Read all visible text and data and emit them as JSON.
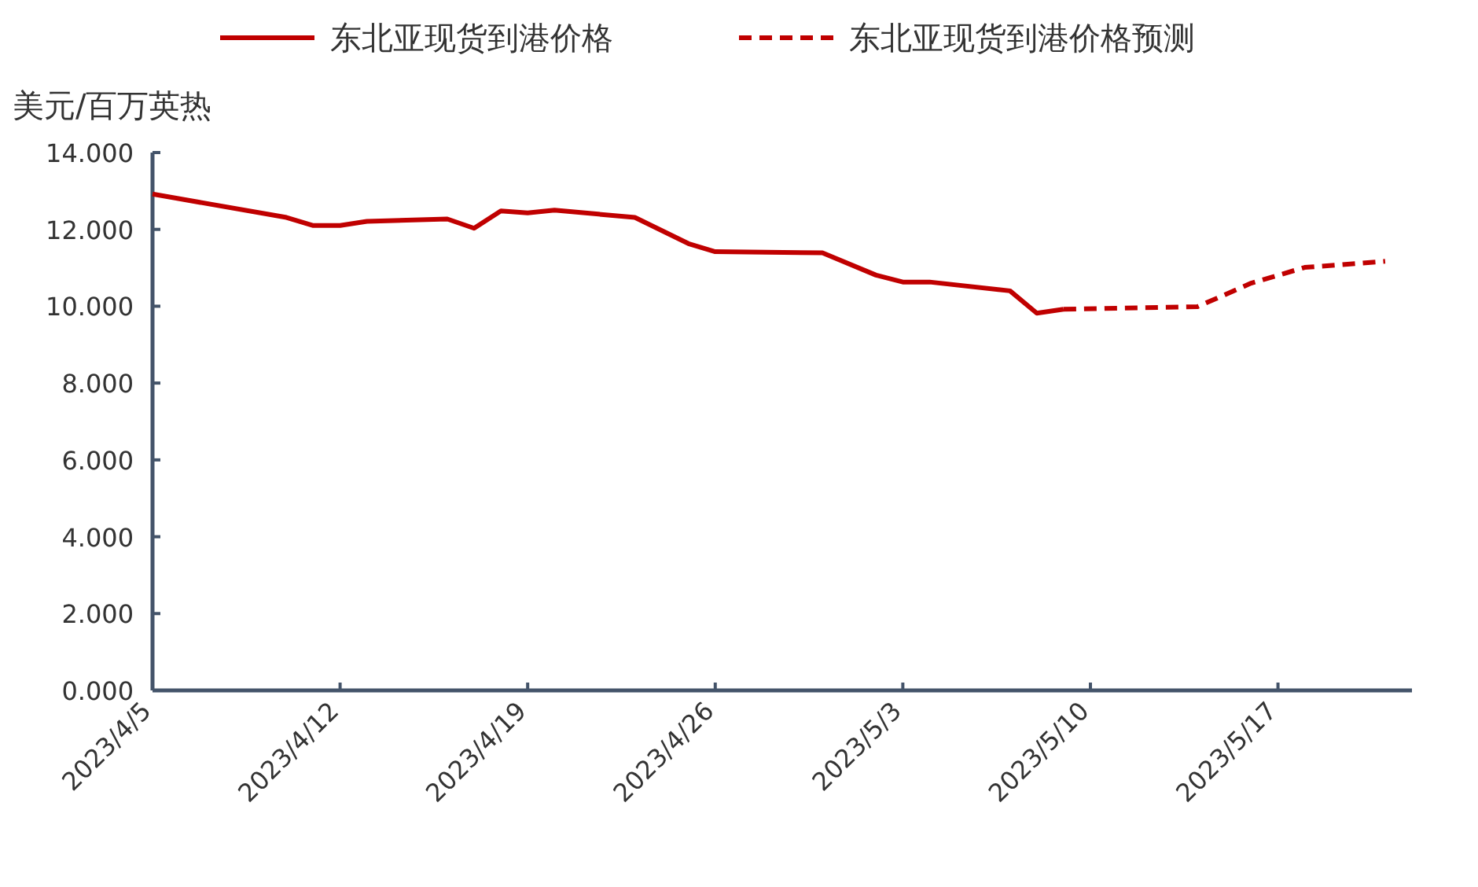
{
  "chart_data": {
    "type": "line",
    "ylabel": "美元/百万英热",
    "legend": "top",
    "xlim": [
      "2023-04-05",
      "2023-05-22"
    ],
    "xticks": [
      {
        "value": "2023-04-05",
        "label": "2023/4/5"
      },
      {
        "value": "2023-04-12",
        "label": "2023/4/12"
      },
      {
        "value": "2023-04-19",
        "label": "2023/4/19"
      },
      {
        "value": "2023-04-26",
        "label": "2023/4/26"
      },
      {
        "value": "2023-05-03",
        "label": "2023/5/3"
      },
      {
        "value": "2023-05-10",
        "label": "2023/5/10"
      },
      {
        "value": "2023-05-17",
        "label": "2023/5/17"
      }
    ],
    "ylim": [
      0,
      14
    ],
    "yticks": [
      {
        "value": 0,
        "label": "0.000"
      },
      {
        "value": 2,
        "label": "2.000"
      },
      {
        "value": 4,
        "label": "4.000"
      },
      {
        "value": 6,
        "label": "6.000"
      },
      {
        "value": 8,
        "label": "8.000"
      },
      {
        "value": 10,
        "label": "10.000"
      },
      {
        "value": 12,
        "label": "12.000"
      },
      {
        "value": 14,
        "label": "14.000"
      }
    ],
    "series": [
      {
        "name": "东北亚现货到港价格",
        "color": "#c00000",
        "line_style": "solid",
        "x": [
          "2023-04-05",
          "2023-04-10",
          "2023-04-11",
          "2023-04-12",
          "2023-04-13",
          "2023-04-16",
          "2023-04-17",
          "2023-04-18",
          "2023-04-19",
          "2023-04-20",
          "2023-04-23",
          "2023-04-25",
          "2023-04-26",
          "2023-04-30",
          "2023-05-02",
          "2023-05-03",
          "2023-05-04",
          "2023-05-07",
          "2023-05-08",
          "2023-05-09"
        ],
        "values": [
          12.92,
          12.31,
          12.1,
          12.1,
          12.21,
          12.27,
          12.03,
          12.48,
          12.43,
          12.5,
          12.31,
          11.63,
          11.42,
          11.39,
          10.81,
          10.63,
          10.63,
          10.4,
          9.82,
          9.92
        ]
      },
      {
        "name": "东北亚现货到港价格预测",
        "color": "#c00000",
        "line_style": "dashed",
        "x": [
          "2023-05-09",
          "2023-05-14",
          "2023-05-16",
          "2023-05-18",
          "2023-05-21"
        ],
        "values": [
          9.92,
          9.99,
          10.6,
          11.01,
          11.17
        ]
      }
    ]
  }
}
